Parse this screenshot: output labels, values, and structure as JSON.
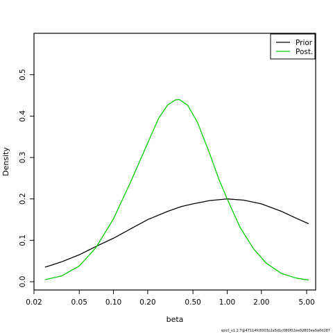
{
  "chart_data": {
    "type": "line",
    "xlabel": "beta",
    "ylabel": "Density",
    "xscale": "log",
    "xlim": [
      0.02,
      6.0
    ],
    "ylim": [
      -0.02,
      0.6
    ],
    "x_ticks": [
      0.02,
      0.05,
      0.1,
      0.2,
      0.5,
      1.0,
      2.0,
      5.0
    ],
    "x_tick_labels": [
      "0.02",
      "0.05",
      "0.10",
      "0.20",
      "0.50",
      "1.00",
      "2.00",
      "5.00"
    ],
    "y_ticks": [
      0.0,
      0.1,
      0.2,
      0.3,
      0.4,
      0.5
    ],
    "y_tick_labels": [
      "0.0",
      "0.1",
      "0.2",
      "0.3",
      "0.4",
      "0.5"
    ],
    "legend_position": "top-right",
    "series": [
      {
        "name": "Prior",
        "color": "#000000",
        "x": [
          0.025,
          0.035,
          0.05,
          0.07,
          0.1,
          0.14,
          0.2,
          0.3,
          0.4,
          0.5,
          0.7,
          1.0,
          1.4,
          2.0,
          3.0,
          4.0,
          5.2
        ],
        "y": [
          0.035,
          0.048,
          0.065,
          0.085,
          0.105,
          0.127,
          0.15,
          0.17,
          0.182,
          0.188,
          0.196,
          0.2,
          0.197,
          0.188,
          0.17,
          0.154,
          0.14
        ]
      },
      {
        "name": "Post.",
        "color": "#00cc00",
        "x": [
          0.025,
          0.035,
          0.05,
          0.07,
          0.1,
          0.14,
          0.2,
          0.25,
          0.3,
          0.35,
          0.38,
          0.45,
          0.55,
          0.7,
          0.85,
          1.0,
          1.3,
          1.7,
          2.2,
          3.0,
          4.0,
          5.2
        ],
        "y": [
          0.005,
          0.014,
          0.038,
          0.082,
          0.152,
          0.238,
          0.335,
          0.395,
          0.427,
          0.439,
          0.44,
          0.426,
          0.384,
          0.31,
          0.246,
          0.2,
          0.131,
          0.08,
          0.045,
          0.02,
          0.009,
          0.004
        ]
      }
    ]
  },
  "footer_text": "spict_v1.2.7@47114fc8303c2a5d1c080f02ee02803ea5a0d287"
}
